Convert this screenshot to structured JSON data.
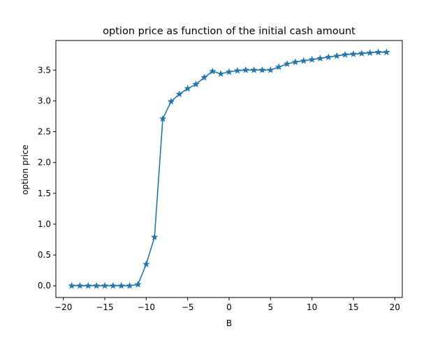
{
  "chart_data": {
    "type": "line",
    "title": "option price as function of the initial cash amount",
    "xlabel": "B",
    "ylabel": "option price",
    "xlim": [
      -20.9,
      20.9
    ],
    "ylim": [
      -0.19,
      3.98
    ],
    "x_ticks": [
      -20,
      -15,
      -10,
      -5,
      0,
      5,
      10,
      15,
      20
    ],
    "x_tick_labels": [
      "−20",
      "−15",
      "−10",
      "−5",
      "0",
      "5",
      "10",
      "15",
      "20"
    ],
    "y_ticks": [
      0.0,
      0.5,
      1.0,
      1.5,
      2.0,
      2.5,
      3.0,
      3.5
    ],
    "y_tick_labels": [
      "0.0",
      "0.5",
      "1.0",
      "1.5",
      "2.0",
      "2.5",
      "3.0",
      "3.5"
    ],
    "grid": false,
    "series": [
      {
        "color": "#1f77b4",
        "marker": "star",
        "x": [
          -19,
          -18,
          -17,
          -16,
          -15,
          -14,
          -13,
          -12,
          -11,
          -10,
          -9,
          -8,
          -7,
          -6,
          -5,
          -4,
          -3,
          -2,
          -1,
          0,
          1,
          2,
          3,
          4,
          5,
          6,
          7,
          8,
          9,
          10,
          11,
          12,
          13,
          14,
          15,
          16,
          17,
          18,
          19
        ],
        "y": [
          0.0,
          0.0,
          0.0,
          0.0,
          0.0,
          0.0,
          0.0,
          0.0,
          0.02,
          0.35,
          0.79,
          2.71,
          2.99,
          3.11,
          3.2,
          3.27,
          3.38,
          3.48,
          3.44,
          3.47,
          3.49,
          3.5,
          3.5,
          3.5,
          3.5,
          3.55,
          3.6,
          3.63,
          3.65,
          3.67,
          3.69,
          3.71,
          3.73,
          3.75,
          3.76,
          3.77,
          3.78,
          3.79,
          3.79
        ]
      }
    ]
  }
}
